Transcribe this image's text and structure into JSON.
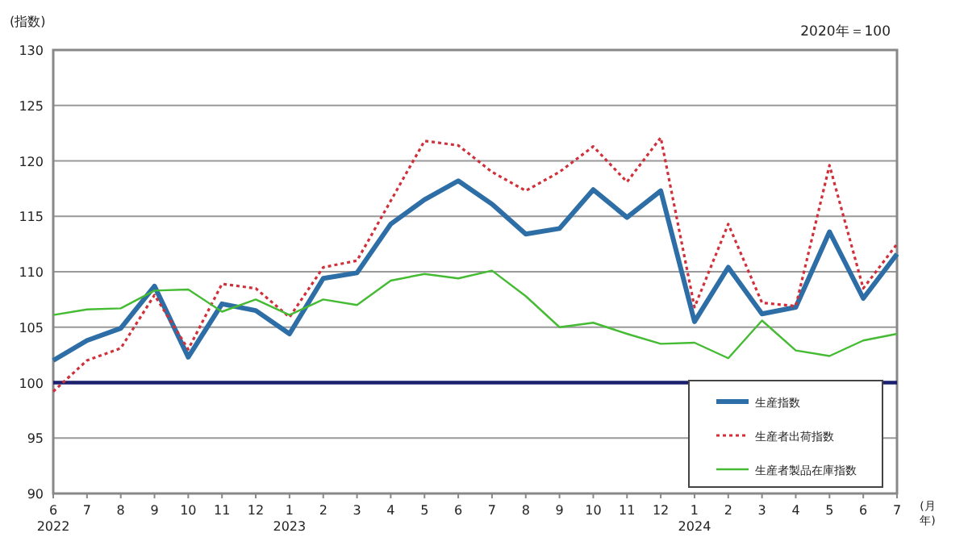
{
  "chart_data": {
    "type": "line",
    "ylabel": "(指数)",
    "xlabel": "(月年)",
    "annotations": [
      "2020年＝100"
    ],
    "categories": [
      "6\n2022",
      "7",
      "8",
      "9",
      "10",
      "11",
      "12",
      "1\n2023",
      "2",
      "3",
      "4",
      "5",
      "6",
      "7",
      "8",
      "9",
      "10",
      "11",
      "12",
      "1\n2024",
      "2",
      "3",
      "4",
      "5",
      "6",
      "7"
    ],
    "series": [
      {
        "name": "生産指数",
        "color": "#2e6ea6",
        "line_style": "solid",
        "values": [
          102.0,
          103.8,
          104.9,
          108.7,
          102.3,
          107.1,
          106.5,
          104.4,
          109.4,
          109.9,
          114.3,
          116.5,
          118.2,
          116.1,
          113.4,
          113.9,
          117.4,
          114.9,
          117.3,
          105.5,
          110.4,
          106.2,
          106.8,
          113.6,
          107.6,
          111.6
        ]
      },
      {
        "name": "生産者出荷指数",
        "color": "#d0303a",
        "line_style": "dotted",
        "values": [
          99.2,
          102.0,
          103.1,
          107.9,
          103.0,
          108.9,
          108.5,
          105.9,
          110.4,
          111.0,
          116.4,
          121.8,
          121.4,
          119.0,
          117.3,
          119.0,
          121.3,
          118.1,
          122.1,
          106.8,
          114.3,
          107.2,
          106.9,
          119.6,
          108.5,
          112.5
        ]
      },
      {
        "name": "生産者製品在庫指数",
        "color": "#44bb33",
        "line_style": "solid",
        "values": [
          106.1,
          106.6,
          106.7,
          108.3,
          108.4,
          106.4,
          107.5,
          106.1,
          107.5,
          107.0,
          109.2,
          109.8,
          109.4,
          110.1,
          107.8,
          105.0,
          105.4,
          104.4,
          103.5,
          103.6,
          102.2,
          105.6,
          102.9,
          102.4,
          103.8,
          104.4
        ]
      }
    ],
    "ylim": [
      90,
      130
    ],
    "yticks": [
      90,
      95,
      100,
      105,
      110,
      115,
      120,
      125,
      130
    ],
    "ref_lines": [
      {
        "axis": "y",
        "value": 100,
        "color": "#1a1f6e"
      }
    ],
    "grid": "y",
    "legend": "bottom right",
    "marker": "none"
  }
}
